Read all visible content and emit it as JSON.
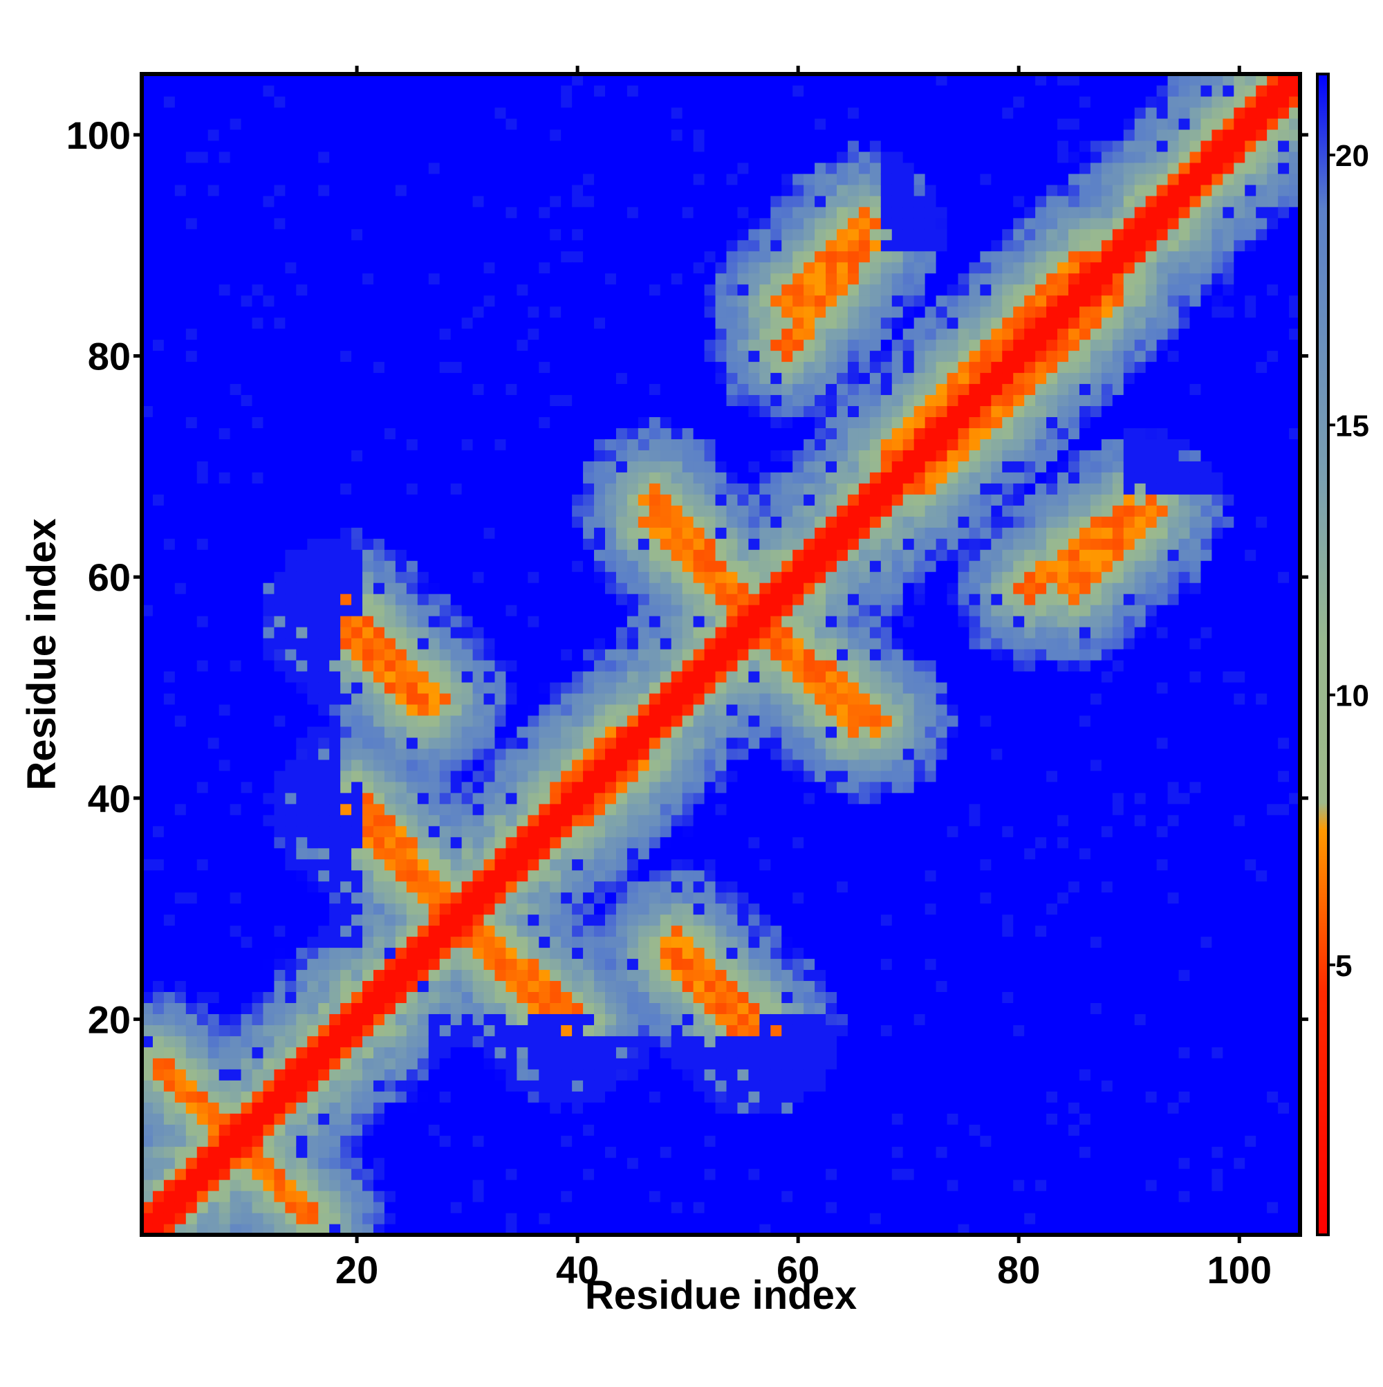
{
  "chart_data": {
    "type": "heatmap",
    "title": "",
    "xlabel": "Residue index",
    "ylabel": "Residue index",
    "n_residues": 105,
    "xlim": [
      1,
      105
    ],
    "ylim": [
      1,
      105
    ],
    "xticks": [
      20,
      40,
      60,
      80,
      100
    ],
    "yticks": [
      20,
      40,
      60,
      80,
      100
    ],
    "colorbar": {
      "range": [
        0,
        21.5
      ],
      "ticks": [
        5,
        10,
        15,
        20
      ],
      "stops": [
        {
          "value": 0,
          "color": "#ff0000"
        },
        {
          "value": 4.5,
          "color": "#ff2a00"
        },
        {
          "value": 7.5,
          "color": "#ff9900"
        },
        {
          "value": 8,
          "color": "#9fb98a"
        },
        {
          "value": 11,
          "color": "#98b890"
        },
        {
          "value": 14,
          "color": "#7a9fb0"
        },
        {
          "value": 19,
          "color": "#5b80c8"
        },
        {
          "value": 21.5,
          "color": "#0000ff"
        }
      ]
    },
    "description_of_values": "Pairwise residue distances; diagonal ~0 (red), contacts 5-8 (orange), intermediate 9-19 (sage/steel), >=20 (blue).",
    "contact_bands": [
      {
        "from": [
          10,
          8
        ],
        "to": [
          16,
          2
        ],
        "width": 1.0
      },
      {
        "from": [
          20,
          40
        ],
        "to": [
          28,
          31
        ],
        "width": 1.1
      },
      {
        "from": [
          19,
          57
        ],
        "to": [
          27,
          49
        ],
        "width": 1.1
      },
      {
        "from": [
          31,
          27
        ],
        "to": [
          39,
          19
        ],
        "width": 1.1
      },
      {
        "from": [
          48,
          26
        ],
        "to": [
          56,
          18
        ],
        "width": 1.0
      },
      {
        "from": [
          47,
          65
        ],
        "to": [
          56,
          56
        ],
        "width": 1.1
      },
      {
        "from": [
          58,
          55
        ],
        "to": [
          67,
          47
        ],
        "width": 1.1
      },
      {
        "from": [
          59,
          81
        ],
        "to": [
          66,
          90
        ],
        "width": 1.1
      },
      {
        "from": [
          85,
          59
        ],
        "to": [
          92,
          66
        ],
        "width": 1.1
      },
      {
        "from": [
          94,
          93
        ],
        "to": [
          104,
          103
        ],
        "width": 0.9
      },
      {
        "from": [
          68,
          71
        ],
        "to": [
          86,
          89
        ],
        "width": 0.9
      },
      {
        "from": [
          38,
          40
        ],
        "to": [
          44,
          46
        ],
        "width": 0.8
      }
    ],
    "far_regions": [
      {
        "x": [
          1,
          20
        ],
        "y": [
          57,
          105
        ]
      },
      {
        "x": [
          1,
          20
        ],
        "y": [
          27,
          41
        ]
      },
      {
        "x": [
          37,
          105
        ],
        "y": [
          1,
          18
        ]
      },
      {
        "x": [
          78,
          105
        ],
        "y": [
          18,
          35
        ]
      },
      {
        "x": [
          68,
          78
        ],
        "y": [
          90,
          100
        ]
      },
      {
        "x": [
          85,
          100
        ],
        "y": [
          20,
          34
        ]
      }
    ],
    "far_regions_hint": "large areas that are mostly beyond 20"
  }
}
